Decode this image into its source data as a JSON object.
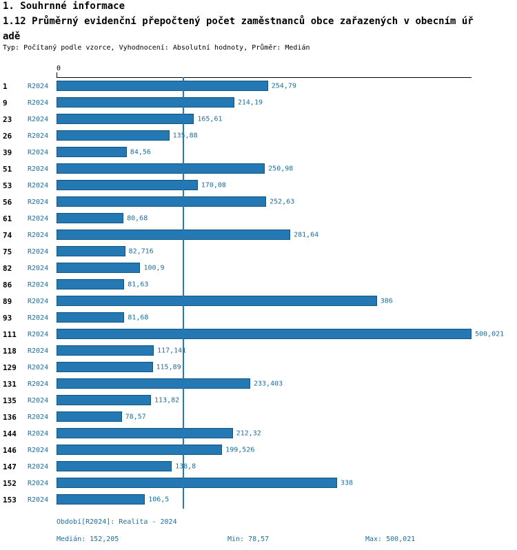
{
  "header": {
    "title": "1. Souhrnné informace",
    "subtitle_line1": "1.12 Průměrný evidenční přepočtený počet zaměstnanců obce zařazených v obecním úř",
    "subtitle_line2": "adě",
    "meta": "Typ: Počítaný podle vzorce, Vyhodnocení: Absolutní hodnoty, Průměr: Medián"
  },
  "chart_data": {
    "type": "bar",
    "orientation": "horizontal",
    "series_label": "R2024",
    "axis": {
      "tick0": "0",
      "xmax": 500.021,
      "grid": false
    },
    "median": 152.205,
    "categories": [
      "1",
      "9",
      "23",
      "26",
      "39",
      "51",
      "53",
      "56",
      "61",
      "74",
      "75",
      "82",
      "86",
      "89",
      "93",
      "111",
      "118",
      "129",
      "131",
      "135",
      "136",
      "144",
      "146",
      "147",
      "152",
      "153"
    ],
    "values": [
      254.79,
      214.19,
      165.61,
      135.88,
      84.56,
      250.98,
      170.08,
      252.63,
      80.68,
      281.64,
      82.716,
      100.9,
      81.63,
      386,
      81.68,
      500.021,
      117.141,
      115.89,
      233.403,
      113.82,
      78.57,
      212.32,
      199.526,
      138.8,
      338,
      106.5
    ],
    "value_labels": [
      "254,79",
      "214,19",
      "165,61",
      "135,88",
      "84,56",
      "250,98",
      "170,08",
      "252,63",
      "80,68",
      "281,64",
      "82,716",
      "100,9",
      "81,63",
      "386",
      "81,68",
      "500,021",
      "117,141",
      "115,89",
      "233,403",
      "113,82",
      "78,57",
      "212,32",
      "199,526",
      "138,8",
      "338",
      "106,5"
    ],
    "colors": {
      "bar": "#2478b4",
      "bar_edge": "#12527e",
      "median_line": "#2478b4",
      "label_blue": "#1a6e9e"
    }
  },
  "footer": {
    "period": "Období[R2024]: Realita - 2024",
    "median": "Medián: 152,205",
    "min": "Min: 78,57",
    "max": "Max: 500,021"
  }
}
